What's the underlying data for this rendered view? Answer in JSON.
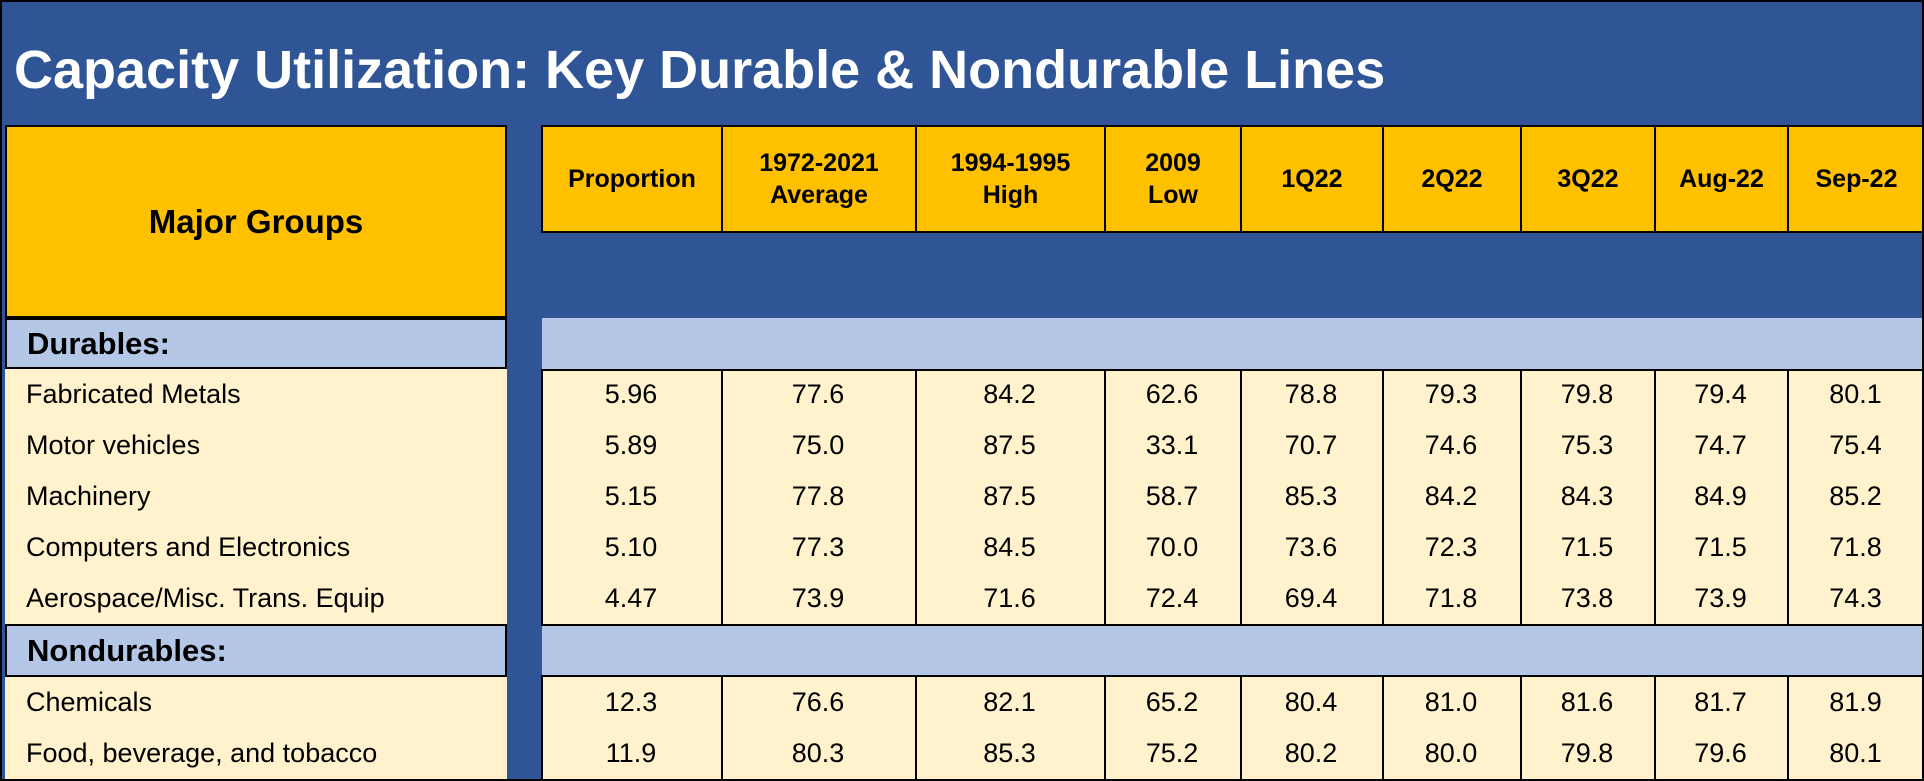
{
  "title": "Capacity Utilization: Key Durable & Nondurable Lines",
  "major_groups_label": "Major Groups",
  "columns": [
    {
      "line1": "Proportion",
      "line2": ""
    },
    {
      "line1": "1972-2021",
      "line2": "Average"
    },
    {
      "line1": "1994-1995",
      "line2": "High"
    },
    {
      "line1": "2009",
      "line2": "Low"
    },
    {
      "line1": "1Q22",
      "line2": ""
    },
    {
      "line1": "2Q22",
      "line2": ""
    },
    {
      "line1": "3Q22",
      "line2": ""
    },
    {
      "line1": "Aug-22",
      "line2": ""
    },
    {
      "line1": "Sep-22",
      "line2": ""
    }
  ],
  "groups": [
    {
      "name": "Durables:",
      "rows": [
        {
          "label": "Fabricated Metals",
          "values": [
            "5.96",
            "77.6",
            "84.2",
            "62.6",
            "78.8",
            "79.3",
            "79.8",
            "79.4",
            "80.1"
          ]
        },
        {
          "label": "Motor vehicles",
          "values": [
            "5.89",
            "75.0",
            "87.5",
            "33.1",
            "70.7",
            "74.6",
            "75.3",
            "74.7",
            "75.4"
          ]
        },
        {
          "label": "Machinery",
          "values": [
            "5.15",
            "77.8",
            "87.5",
            "58.7",
            "85.3",
            "84.2",
            "84.3",
            "84.9",
            "85.2"
          ]
        },
        {
          "label": "Computers and Electronics",
          "values": [
            "5.10",
            "77.3",
            "84.5",
            "70.0",
            "73.6",
            "72.3",
            "71.5",
            "71.5",
            "71.8"
          ]
        },
        {
          "label": "Aerospace/Misc. Trans. Equip",
          "values": [
            "4.47",
            "73.9",
            "71.6",
            "72.4",
            "69.4",
            "71.8",
            "73.8",
            "73.9",
            "74.3"
          ]
        }
      ]
    },
    {
      "name": "Nondurables:",
      "rows": [
        {
          "label": "Chemicals",
          "values": [
            "12.3",
            "76.6",
            "82.1",
            "65.2",
            "80.4",
            "81.0",
            "81.6",
            "81.7",
            "81.9"
          ]
        },
        {
          "label": "Food, beverage,  and tobacco",
          "values": [
            "11.9",
            "80.3",
            "85.3",
            "75.2",
            "80.2",
            "80.0",
            "79.8",
            "79.6",
            "80.1"
          ]
        }
      ]
    }
  ],
  "colors": {
    "background_blue": "#2f5597",
    "header_gold": "#ffc000",
    "group_band": "#b4c7e7",
    "data_cream": "#fff2cc"
  }
}
